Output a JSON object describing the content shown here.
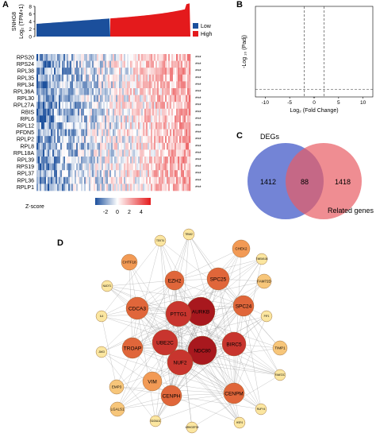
{
  "panels": {
    "a": "A",
    "b": "B",
    "c": "C",
    "d": "D"
  },
  "panel_a": {
    "gene": "SNHG8",
    "ylabel": "Log₂ (TPM+1)",
    "yticks": [
      "8",
      "6",
      "4",
      "2",
      "0"
    ],
    "legend": [
      {
        "label": "Low",
        "color": "#1b4f9c"
      },
      {
        "label": "High",
        "color": "#e41a1c"
      }
    ],
    "genes": [
      "RPS20",
      "RPS24",
      "RPL38",
      "RPL35",
      "RPL34",
      "RPL36A",
      "RPL30",
      "RPL27A",
      "RBIS",
      "RPL6",
      "RPL12",
      "PFDN5",
      "RPLP2",
      "RPL8",
      "RPL18A",
      "RPL39",
      "RPS19",
      "RPL37",
      "RPL36",
      "RPLP1"
    ],
    "significance": "***",
    "colorbar": {
      "title": "Z-score",
      "ticks": [
        "-2",
        "0",
        "2",
        "4"
      ],
      "low": "#1b4f9c",
      "mid": "#ffffff",
      "high": "#e41a1c"
    }
  },
  "panel_b": {
    "ylabel": "-Log ₁₀ (Padj)",
    "xlabel": "Log₂ (Fold Change)",
    "xticks": [
      "-10",
      "-5",
      "0",
      "5",
      "10"
    ],
    "down_color": "#2a5ca8",
    "up_color": "#e41a1c",
    "ns_color": "#999999"
  },
  "panel_c": {
    "sets": [
      {
        "label": "DEGs",
        "only": "1412",
        "color": "#5a6fcf"
      },
      {
        "label": "Related genes",
        "only": "1418",
        "color": "#e85c64"
      }
    ],
    "overlap": "88"
  },
  "panel_d": {
    "nodes": [
      {
        "label": "AURKB",
        "level": 5
      },
      {
        "label": "NDC80",
        "level": 5
      },
      {
        "label": "PTTG1",
        "level": 4
      },
      {
        "label": "UBE2C",
        "level": 4
      },
      {
        "label": "NUF2",
        "level": 4
      },
      {
        "label": "BIRC5",
        "level": 4
      },
      {
        "label": "CDCA3",
        "level": 3
      },
      {
        "label": "SPC25",
        "level": 3
      },
      {
        "label": "SPC24",
        "level": 3
      },
      {
        "label": "TROAP",
        "level": 3
      },
      {
        "label": "CENPH",
        "level": 3
      },
      {
        "label": "CENPM",
        "level": 3
      },
      {
        "label": "EZH2",
        "level": 3
      },
      {
        "label": "VIM",
        "level": 2
      },
      {
        "label": "CHEK2",
        "level": 2
      },
      {
        "label": "CHTF18",
        "level": 2
      },
      {
        "label": "FAM72D",
        "level": 1
      },
      {
        "label": "TIMP1",
        "level": 1
      },
      {
        "label": "EMP3",
        "level": 1
      },
      {
        "label": "LGALS1",
        "level": 1
      },
      {
        "label": "IL4",
        "level": 0
      },
      {
        "label": "JAK3",
        "level": 0
      },
      {
        "label": "NUDT1",
        "level": 0
      },
      {
        "label": "TEKT4",
        "level": 0
      },
      {
        "label": "TRIM2",
        "level": 0
      },
      {
        "label": "TMEM108",
        "level": 0
      },
      {
        "label": "PIF1",
        "level": 0
      },
      {
        "label": "FAM72C",
        "level": 0
      },
      {
        "label": "RUFY4",
        "level": 0
      },
      {
        "label": "HSF4",
        "level": 0
      },
      {
        "label": "S100A11",
        "level": 0
      },
      {
        "label": "ARHGEF39",
        "level": 0
      }
    ],
    "level_colors": [
      "#fbe6a0",
      "#f7c67a",
      "#f29a55",
      "#e0663a",
      "#c8352e",
      "#a8181e"
    ]
  }
}
